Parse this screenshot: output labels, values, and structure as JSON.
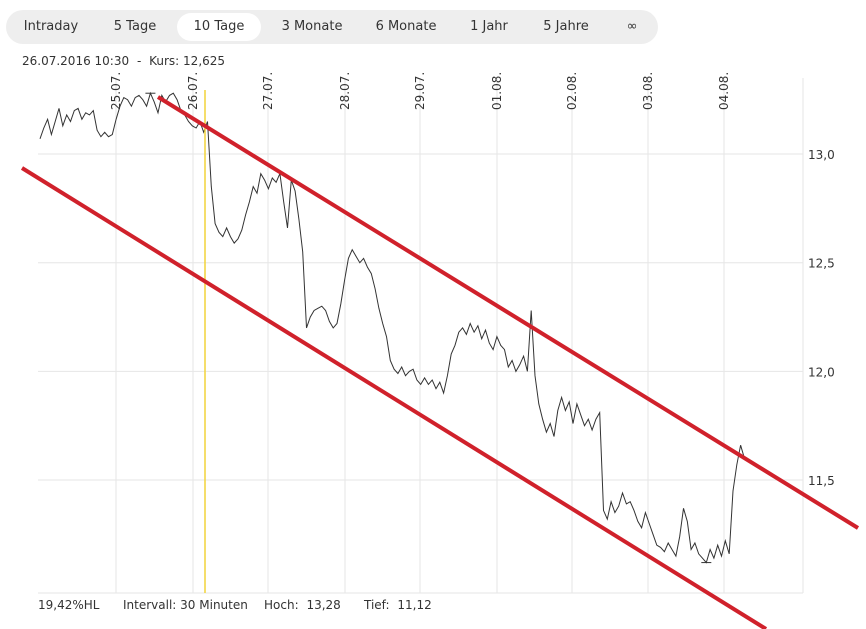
{
  "tabs": [
    {
      "label": "Intraday",
      "active": false
    },
    {
      "label": "5 Tage",
      "active": false
    },
    {
      "label": "10 Tage",
      "active": true
    },
    {
      "label": "3 Monate",
      "active": false
    },
    {
      "label": "6 Monate",
      "active": false
    },
    {
      "label": "1 Jahr",
      "active": false
    },
    {
      "label": "5 Jahre",
      "active": false
    },
    {
      "label": "∞",
      "active": false
    }
  ],
  "info": {
    "date": "26.07.2016 10:30",
    "separator": "-",
    "kurs_label": "Kurs:",
    "kurs_value": "12,625"
  },
  "stats": {
    "hl_value": "19,42",
    "hl_label": "%HL",
    "interval_label": "Intervall:",
    "interval_value": "30 Minuten",
    "high_label": "Hoch:",
    "high_value": "13,28",
    "low_label": "Tief:",
    "low_value": "11,12"
  },
  "colors": {
    "price_line": "#333333",
    "channel": "#d0212b",
    "cursor": "#f2d43a",
    "grid": "#e6e6e6",
    "tab_bg": "#eeeeee"
  },
  "chart_data": {
    "type": "line",
    "x_labels": [
      "25.07.",
      "26.07.",
      "27.07.",
      "28.07.",
      "29.07.",
      "01.08.",
      "02.08.",
      "03.08.",
      "04.08."
    ],
    "y_ticks": [
      "13,0",
      "12,5",
      "12,0",
      "11,5"
    ],
    "y_tick_values": [
      13.0,
      12.5,
      12.0,
      11.5
    ],
    "ylim": [
      10.98,
      13.35
    ],
    "grid": true,
    "series": [
      {
        "values": [
          13.07,
          13.12,
          13.16,
          13.09,
          13.15,
          13.21,
          13.13,
          13.18,
          13.15,
          13.2,
          13.21,
          13.16,
          13.19,
          13.18,
          13.2,
          13.11,
          13.08,
          13.1,
          13.08,
          13.09,
          13.16,
          13.22,
          13.26,
          13.25,
          13.22,
          13.26,
          13.27,
          13.25,
          13.22,
          13.28,
          13.24,
          13.19,
          13.27,
          13.24,
          13.27,
          13.28,
          13.25,
          13.2,
          13.18,
          13.15,
          13.13,
          13.12,
          13.15,
          13.1,
          13.15,
          12.85,
          12.68,
          12.64,
          12.62,
          12.66,
          12.62,
          12.59,
          12.61,
          12.65,
          12.72,
          12.78,
          12.85,
          12.82,
          12.91,
          12.88,
          12.84,
          12.89,
          12.87,
          12.91,
          12.78,
          12.66,
          12.88,
          12.83,
          12.7,
          12.55,
          12.2,
          12.25,
          12.28,
          12.29,
          12.3,
          12.28,
          12.23,
          12.2,
          12.22,
          12.31,
          12.42,
          12.52,
          12.56,
          12.53,
          12.5,
          12.52,
          12.48,
          12.45,
          12.38,
          12.29,
          12.22,
          12.16,
          12.05,
          12.01,
          11.99,
          12.02,
          11.98,
          12.0,
          12.01,
          11.96,
          11.94,
          11.97,
          11.94,
          11.96,
          11.92,
          11.95,
          11.9,
          11.98,
          12.08,
          12.12,
          12.18,
          12.2,
          12.17,
          12.22,
          12.18,
          12.21,
          12.15,
          12.19,
          12.13,
          12.1,
          12.16,
          12.12,
          12.1,
          12.02,
          12.05,
          12.0,
          12.03,
          12.07,
          12.0,
          12.28,
          11.98,
          11.85,
          11.78,
          11.72,
          11.76,
          11.7,
          11.82,
          11.88,
          11.82,
          11.86,
          11.76,
          11.85,
          11.8,
          11.75,
          11.78,
          11.73,
          11.78,
          11.81,
          11.36,
          11.32,
          11.4,
          11.35,
          11.38,
          11.44,
          11.39,
          11.4,
          11.36,
          11.31,
          11.28,
          11.35,
          11.3,
          11.25,
          11.2,
          11.19,
          11.17,
          11.21,
          11.18,
          11.15,
          11.24,
          11.37,
          11.31,
          11.18,
          11.21,
          11.16,
          11.14,
          11.12,
          11.18,
          11.14,
          11.2,
          11.15,
          11.22,
          11.16,
          11.45,
          11.57,
          11.66,
          11.6,
          11.59,
          11.58
        ]
      }
    ]
  }
}
